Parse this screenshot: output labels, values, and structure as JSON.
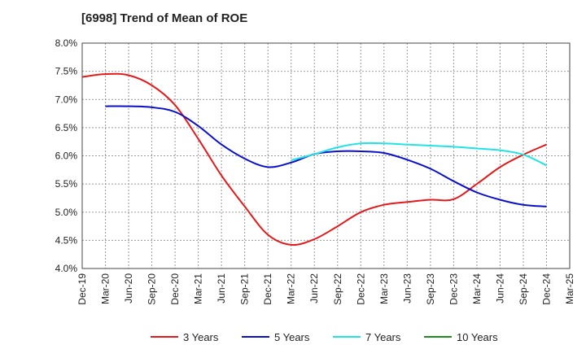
{
  "chart_data": {
    "type": "line",
    "title": "[6998]  Trend of Mean of ROE",
    "xlabel": "",
    "ylabel": "",
    "x_ticks": [
      "Dec-19",
      "Mar-20",
      "Jun-20",
      "Sep-20",
      "Dec-20",
      "Mar-21",
      "Jun-21",
      "Sep-21",
      "Dec-21",
      "Mar-22",
      "Jun-22",
      "Sep-22",
      "Dec-22",
      "Mar-23",
      "Jun-23",
      "Sep-23",
      "Dec-23",
      "Mar-24",
      "Jun-24",
      "Sep-24",
      "Dec-24",
      "Mar-25"
    ],
    "y_ticks": [
      "8.0%",
      "7.5%",
      "7.0%",
      "6.5%",
      "6.0%",
      "5.5%",
      "5.0%",
      "4.5%",
      "4.0%"
    ],
    "ylim": [
      4.0,
      8.0
    ],
    "grid": true,
    "legend_position": "bottom",
    "series": [
      {
        "name": "3 Years",
        "color": "#e31a1c",
        "x": [
          "Dec-19",
          "Mar-20",
          "Jun-20",
          "Sep-20",
          "Dec-20",
          "Mar-21",
          "Jun-21",
          "Sep-21",
          "Dec-21",
          "Mar-22",
          "Jun-22",
          "Sep-22",
          "Dec-22",
          "Mar-23",
          "Jun-23",
          "Sep-23",
          "Dec-23",
          "Mar-24",
          "Jun-24",
          "Sep-24",
          "Dec-24"
        ],
        "values": [
          7.4,
          7.45,
          7.43,
          7.25,
          6.9,
          6.3,
          5.65,
          5.1,
          4.6,
          4.42,
          4.52,
          4.75,
          5.0,
          5.13,
          5.18,
          5.22,
          5.23,
          5.5,
          5.8,
          6.02,
          6.2
        ]
      },
      {
        "name": "5 Years",
        "color": "#0a10c8",
        "x": [
          "Mar-20",
          "Jun-20",
          "Sep-20",
          "Dec-20",
          "Mar-21",
          "Jun-21",
          "Sep-21",
          "Dec-21",
          "Mar-22",
          "Jun-22",
          "Sep-22",
          "Dec-22",
          "Mar-23",
          "Jun-23",
          "Sep-23",
          "Dec-23",
          "Mar-24",
          "Jun-24",
          "Sep-24",
          "Dec-24"
        ],
        "values": [
          6.88,
          6.88,
          6.86,
          6.78,
          6.53,
          6.2,
          5.95,
          5.8,
          5.88,
          6.03,
          6.08,
          6.08,
          6.05,
          5.93,
          5.77,
          5.55,
          5.35,
          5.22,
          5.13,
          5.1
        ]
      },
      {
        "name": "7 Years",
        "color": "#22e3e3",
        "x": [
          "Mar-22",
          "Jun-22",
          "Sep-22",
          "Dec-22",
          "Mar-23",
          "Jun-23",
          "Sep-23",
          "Dec-23",
          "Mar-24",
          "Jun-24",
          "Sep-24",
          "Dec-24"
        ],
        "values": [
          5.92,
          6.03,
          6.15,
          6.22,
          6.22,
          6.2,
          6.18,
          6.16,
          6.13,
          6.1,
          6.02,
          5.83
        ]
      },
      {
        "name": "10 Years",
        "color": "#1e8c1e",
        "x": [],
        "values": []
      }
    ]
  }
}
